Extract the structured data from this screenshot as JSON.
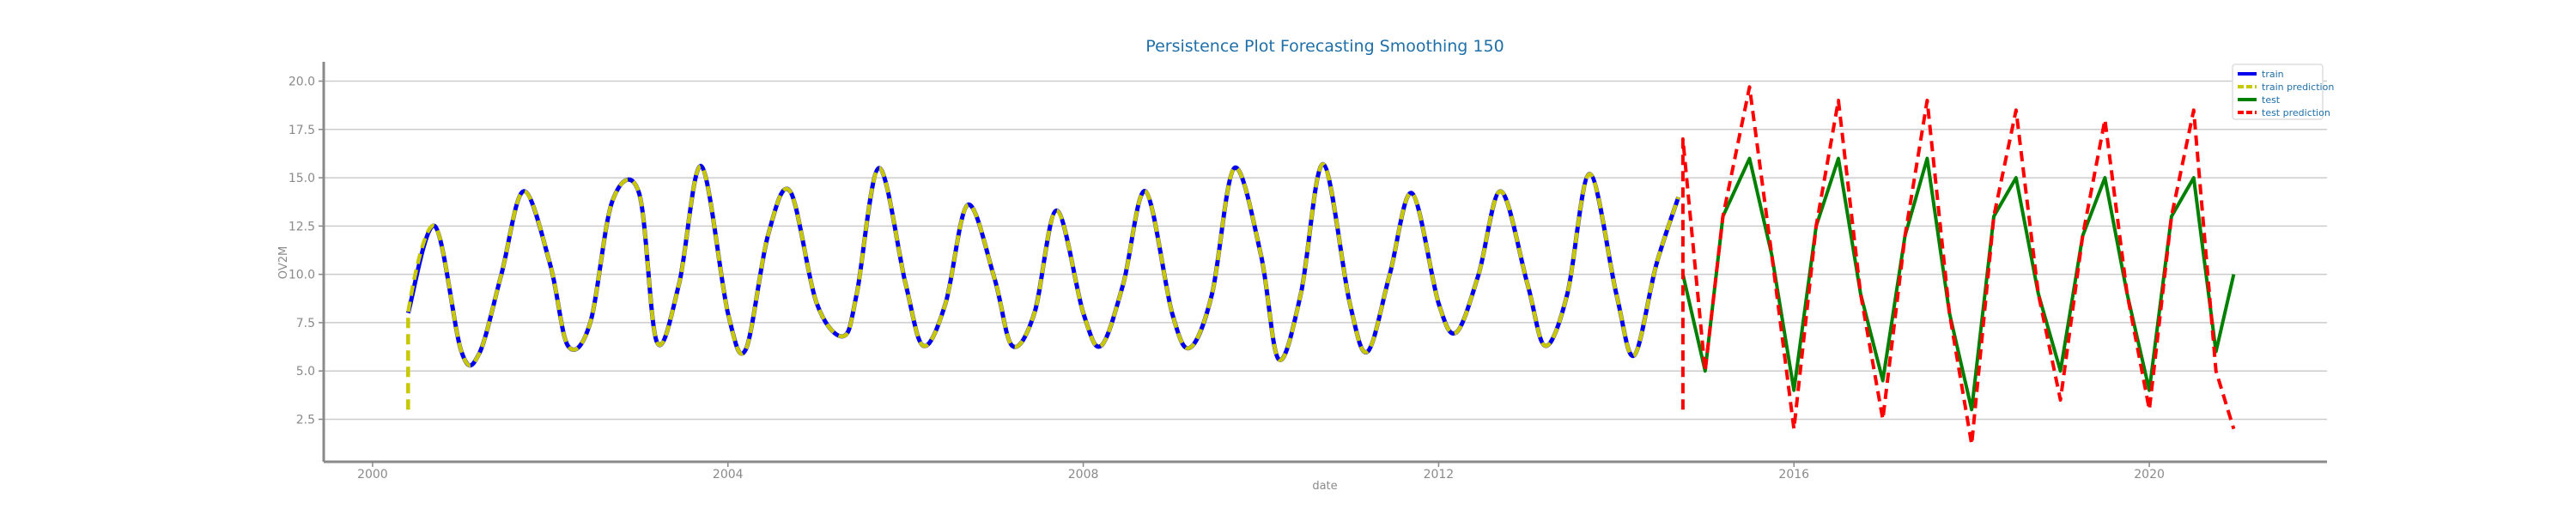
{
  "chart_data": {
    "type": "line",
    "title": "Persistence Plot Forecasting Smoothing 150",
    "xlabel": "date",
    "ylabel": "OV2M",
    "xlim": [
      1999.45,
      2022.0
    ],
    "ylim": [
      0.3,
      21.0
    ],
    "x_ticks": [
      2000,
      2004,
      2008,
      2012,
      2016,
      2020
    ],
    "x_tick_labels": [
      "2000",
      "2004",
      "2008",
      "2012",
      "2016",
      "2020"
    ],
    "y_ticks": [
      2.5,
      5.0,
      7.5,
      10.0,
      12.5,
      15.0,
      17.5,
      20.0
    ],
    "y_tick_labels": [
      "2.5",
      "5.0",
      "7.5",
      "10.0",
      "12.5",
      "15.0",
      "17.5",
      "20.0"
    ],
    "grid": "horizontal",
    "legend_position": "top-right",
    "colors": {
      "train": "#0000ee",
      "train_prediction": "#c8c800",
      "test": "#008000",
      "test_prediction": "#ff0000",
      "title": "#1f6fa8",
      "axis": "#8a8a8a",
      "grid": "#cccccc"
    },
    "series": [
      {
        "name": "train",
        "style": "solid",
        "x": [
          2000.4,
          2000.7,
          2001.0,
          2001.2,
          2001.45,
          2001.7,
          2002.0,
          2002.2,
          2002.45,
          2002.7,
          2003.0,
          2003.2,
          2003.45,
          2003.7,
          2004.0,
          2004.2,
          2004.45,
          2004.7,
          2005.0,
          2005.3,
          2005.45,
          2005.7,
          2006.0,
          2006.2,
          2006.45,
          2006.7,
          2007.0,
          2007.2,
          2007.45,
          2007.7,
          2008.0,
          2008.2,
          2008.45,
          2008.7,
          2009.0,
          2009.2,
          2009.45,
          2009.7,
          2010.0,
          2010.2,
          2010.45,
          2010.7,
          2011.0,
          2011.2,
          2011.45,
          2011.7,
          2012.0,
          2012.2,
          2012.45,
          2012.7,
          2013.0,
          2013.2,
          2013.45,
          2013.7,
          2014.0,
          2014.2,
          2014.45,
          2014.7
        ],
        "y": [
          8.0,
          12.5,
          6.0,
          5.9,
          10.0,
          14.3,
          10.5,
          6.3,
          7.5,
          13.8,
          14.2,
          6.5,
          9.5,
          15.6,
          8.0,
          6.1,
          12.0,
          14.3,
          8.5,
          6.8,
          9.0,
          15.5,
          9.5,
          6.3,
          8.5,
          13.6,
          9.8,
          6.3,
          8.0,
          13.3,
          8.0,
          6.3,
          9.5,
          14.3,
          8.0,
          6.2,
          9.0,
          15.5,
          11.0,
          5.6,
          9.0,
          15.7,
          8.5,
          6.0,
          10.0,
          14.2,
          8.5,
          7.0,
          10.0,
          14.3,
          9.5,
          6.3,
          9.0,
          15.2,
          9.0,
          5.8,
          10.5,
          14.0
        ]
      },
      {
        "name": "train prediction",
        "style": "dashed",
        "x": [
          2000.4,
          2000.4,
          2000.7,
          2001.0,
          2001.2,
          2001.45,
          2001.7,
          2002.0,
          2002.2,
          2002.45,
          2002.7,
          2003.0,
          2003.2,
          2003.45,
          2003.7,
          2004.0,
          2004.2,
          2004.45,
          2004.7,
          2005.0,
          2005.3,
          2005.45,
          2005.7,
          2006.0,
          2006.2,
          2006.45,
          2006.7,
          2007.0,
          2007.2,
          2007.45,
          2007.7,
          2008.0,
          2008.2,
          2008.45,
          2008.7,
          2009.0,
          2009.2,
          2009.45,
          2009.7,
          2010.0,
          2010.2,
          2010.45,
          2010.7,
          2011.0,
          2011.2,
          2011.45,
          2011.7,
          2012.0,
          2012.2,
          2012.45,
          2012.7,
          2013.0,
          2013.2,
          2013.45,
          2013.7,
          2014.0,
          2014.2,
          2014.45,
          2014.7
        ],
        "y": [
          3.0,
          8.0,
          12.5,
          6.0,
          5.9,
          10.0,
          14.3,
          10.5,
          6.3,
          7.5,
          13.8,
          14.2,
          6.5,
          9.5,
          15.6,
          8.0,
          6.1,
          12.0,
          14.3,
          8.5,
          6.8,
          9.0,
          15.5,
          9.5,
          6.3,
          8.5,
          13.6,
          9.8,
          6.3,
          8.0,
          13.3,
          8.0,
          6.3,
          9.5,
          14.3,
          8.0,
          6.2,
          9.0,
          15.5,
          11.0,
          5.6,
          9.0,
          15.7,
          8.5,
          6.0,
          10.0,
          14.2,
          8.5,
          7.0,
          10.0,
          14.3,
          9.5,
          6.3,
          9.0,
          15.2,
          9.0,
          5.8,
          10.5,
          14.0
        ]
      },
      {
        "name": "test",
        "style": "solid",
        "x": [
          2014.75,
          2015.0,
          2015.2,
          2015.5,
          2015.75,
          2016.0,
          2016.25,
          2016.5,
          2016.75,
          2017.0,
          2017.25,
          2017.5,
          2017.75,
          2018.0,
          2018.25,
          2018.5,
          2018.75,
          2019.0,
          2019.25,
          2019.5,
          2019.75,
          2020.0,
          2020.25,
          2020.5,
          2020.75,
          2020.95
        ],
        "y": [
          10.0,
          5.0,
          13.0,
          16.0,
          11.0,
          4.0,
          12.5,
          16.0,
          9.0,
          4.5,
          12.0,
          16.0,
          8.0,
          3.0,
          13.0,
          15.0,
          9.0,
          5.0,
          12.0,
          15.0,
          9.0,
          4.0,
          13.0,
          15.0,
          6.0,
          10.0
        ]
      },
      {
        "name": "test prediction",
        "style": "dashed",
        "x": [
          2014.75,
          2014.75,
          2015.0,
          2015.2,
          2015.5,
          2015.75,
          2016.0,
          2016.25,
          2016.5,
          2016.75,
          2017.0,
          2017.25,
          2017.5,
          2017.75,
          2018.0,
          2018.25,
          2018.5,
          2018.75,
          2019.0,
          2019.25,
          2019.5,
          2019.75,
          2020.0,
          2020.25,
          2020.5,
          2020.75,
          2020.95
        ],
        "y": [
          3.0,
          17.0,
          5.0,
          13.0,
          19.7,
          11.0,
          2.0,
          12.5,
          19.0,
          9.0,
          2.5,
          12.0,
          19.0,
          8.0,
          1.2,
          13.0,
          18.5,
          9.0,
          3.5,
          12.0,
          18.0,
          9.0,
          3.0,
          13.0,
          18.5,
          5.0,
          2.0
        ]
      }
    ]
  }
}
